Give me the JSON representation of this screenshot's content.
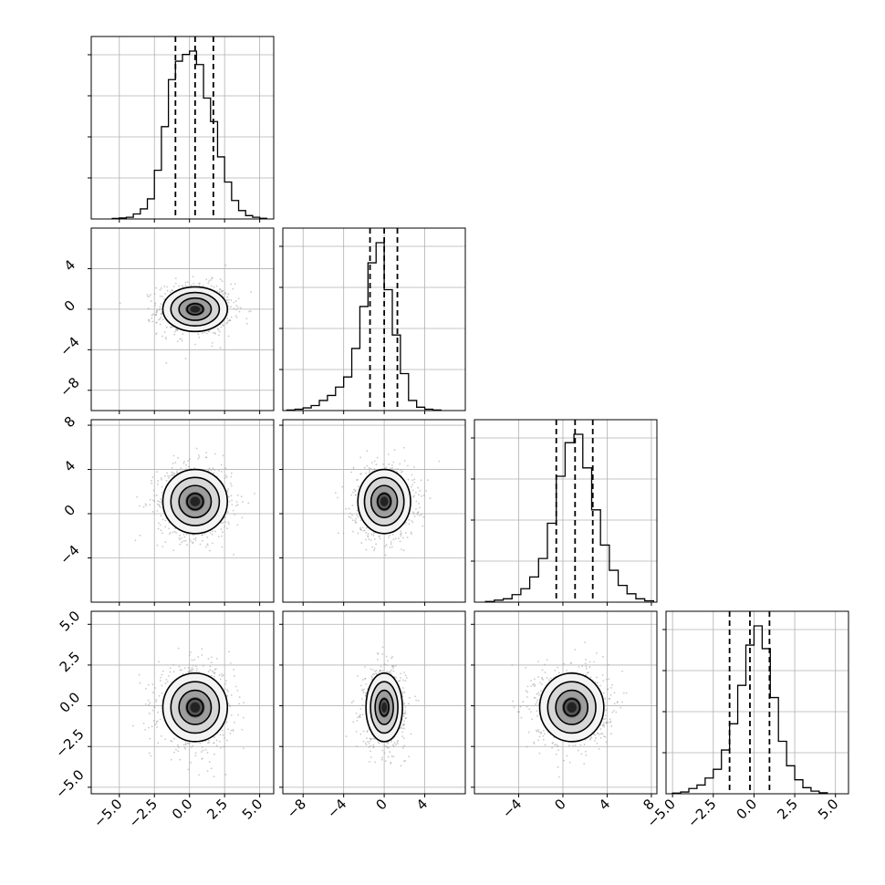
{
  "chart_data": {
    "type": "corner",
    "grid_visible": true,
    "dimensions": [
      {
        "name": "",
        "range": [
          -7,
          6
        ],
        "ticks": [
          -5,
          -2.5,
          0,
          2.5,
          5
        ],
        "tick_labels": [
          "−5.0",
          "−2.5",
          "0.0",
          "2.5",
          "5.0"
        ],
        "quantiles": [
          -1.0,
          0.4,
          1.7
        ],
        "hist": {
          "edges": [
            -5.5,
            -5.0,
            -4.5,
            -4.0,
            -3.5,
            -3.0,
            -2.5,
            -2.0,
            -1.5,
            -1.0,
            -0.5,
            0.0,
            0.5,
            1.0,
            1.5,
            2.0,
            2.5,
            3.0,
            3.5,
            4.0,
            4.5,
            5.0,
            5.5
          ],
          "counts": [
            0.003,
            0.006,
            0.01,
            0.03,
            0.06,
            0.12,
            0.29,
            0.55,
            0.83,
            0.94,
            0.98,
            1.0,
            0.92,
            0.72,
            0.58,
            0.37,
            0.22,
            0.11,
            0.05,
            0.02,
            0.01,
            0.004
          ]
        }
      },
      {
        "name": "",
        "range": [
          -10,
          8
        ],
        "ticks": [
          -8,
          -4,
          0,
          4
        ],
        "tick_labels": [
          "−8",
          "−4",
          "0",
          "4"
        ],
        "quantiles": [
          -1.4,
          0.0,
          1.3
        ],
        "hist": {
          "edges": [
            -9.6,
            -8.8,
            -8.0,
            -7.2,
            -6.4,
            -5.6,
            -4.8,
            -4.0,
            -3.2,
            -2.4,
            -1.6,
            -0.8,
            0.0,
            0.8,
            1.6,
            2.4,
            3.2,
            4.0,
            4.8,
            5.6
          ],
          "counts": [
            0.003,
            0.008,
            0.016,
            0.03,
            0.06,
            0.09,
            0.14,
            0.2,
            0.37,
            0.62,
            0.88,
            1.0,
            0.72,
            0.45,
            0.22,
            0.06,
            0.02,
            0.008,
            0.003
          ]
        }
      },
      {
        "name": "",
        "range": [
          -8,
          8.5
        ],
        "ticks": [
          -4,
          0,
          4,
          8
        ],
        "tick_labels": [
          "−4",
          "0",
          "4",
          "8"
        ],
        "quantiles": [
          -0.6,
          1.1,
          2.7
        ],
        "hist": {
          "edges": [
            -7.0,
            -6.2,
            -5.4,
            -4.6,
            -3.8,
            -3.0,
            -2.2,
            -1.4,
            -0.6,
            0.2,
            1.0,
            1.8,
            2.6,
            3.4,
            4.2,
            5.0,
            5.8,
            6.6,
            7.4,
            8.2
          ],
          "counts": [
            0.004,
            0.012,
            0.02,
            0.045,
            0.08,
            0.15,
            0.26,
            0.47,
            0.75,
            0.95,
            1.0,
            0.8,
            0.55,
            0.34,
            0.19,
            0.1,
            0.05,
            0.02,
            0.008
          ]
        }
      },
      {
        "name": "",
        "range": [
          -5.4,
          5.8
        ],
        "ticks": [
          -5,
          -2.5,
          0,
          2.5,
          5
        ],
        "tick_labels": [
          "−5.0",
          "−2.5",
          "0.0",
          "2.5",
          "5.0"
        ],
        "quantiles": [
          -1.5,
          -0.25,
          0.95
        ],
        "hist": {
          "edges": [
            -5.0,
            -4.5,
            -4.0,
            -3.5,
            -3.0,
            -2.5,
            -2.0,
            -1.5,
            -1.0,
            -0.5,
            0.0,
            0.5,
            1.0,
            1.5,
            2.0,
            2.5,
            3.0,
            3.5,
            4.0,
            4.5
          ],
          "counts": [
            0.004,
            0.01,
            0.03,
            0.05,
            0.09,
            0.14,
            0.25,
            0.4,
            0.62,
            0.85,
            0.96,
            0.83,
            0.55,
            0.3,
            0.16,
            0.08,
            0.035,
            0.015,
            0.006
          ]
        }
      }
    ],
    "pairs": [
      {
        "x": 0,
        "y": 1,
        "center": [
          0.4,
          0.0
        ],
        "radii_1sigma": [
          1.15,
          1.1
        ],
        "contour_sigmas": [
          0.5,
          1.0,
          1.5,
          2.0
        ]
      },
      {
        "x": 0,
        "y": 2,
        "center": [
          0.4,
          1.1
        ],
        "radii_1sigma": [
          1.15,
          1.45
        ],
        "contour_sigmas": [
          0.5,
          1.0,
          1.5,
          2.0
        ]
      },
      {
        "x": 1,
        "y": 2,
        "center": [
          0.0,
          1.1
        ],
        "radii_1sigma": [
          1.3,
          1.45
        ],
        "contour_sigmas": [
          0.5,
          1.0,
          1.5,
          2.0
        ]
      },
      {
        "x": 0,
        "y": 3,
        "center": [
          0.4,
          -0.1
        ],
        "radii_1sigma": [
          1.15,
          1.05
        ],
        "contour_sigmas": [
          0.5,
          1.0,
          1.5,
          2.0
        ]
      },
      {
        "x": 1,
        "y": 3,
        "center": [
          0.0,
          -0.1
        ],
        "radii_1sigma": [
          0.9,
          1.05
        ],
        "contour_sigmas": [
          0.5,
          1.0,
          1.5,
          2.0
        ]
      },
      {
        "x": 2,
        "y": 3,
        "center": [
          0.8,
          -0.1
        ],
        "radii_1sigma": [
          1.45,
          1.05
        ],
        "contour_sigmas": [
          0.5,
          1.0,
          1.5,
          2.0
        ]
      }
    ],
    "colors": {
      "line": "#000000",
      "grid": "#b0b0b0",
      "scatter": "#9e9e9e",
      "density_dark": "#111111",
      "density_light": "#f5f5f5"
    }
  }
}
